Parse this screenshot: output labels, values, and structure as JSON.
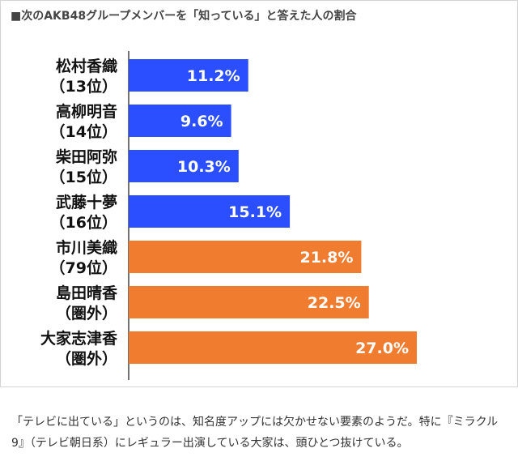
{
  "chart_data": {
    "type": "bar",
    "orientation": "horizontal",
    "title": "■次のAKB48グループメンバーを「知っている」と答えた人の割合",
    "categories": [
      {
        "name": "松村香織",
        "sub": "（13位）"
      },
      {
        "name": "高柳明音",
        "sub": "（14位）"
      },
      {
        "name": "柴田阿弥",
        "sub": "（15位）"
      },
      {
        "name": "武藤十夢",
        "sub": "（16位）"
      },
      {
        "name": "市川美織",
        "sub": "（79位）"
      },
      {
        "name": "島田晴香",
        "sub": "（圏外）"
      },
      {
        "name": "大家志津香",
        "sub": "（圏外）"
      }
    ],
    "values": [
      11.2,
      9.6,
      10.3,
      15.1,
      21.8,
      22.5,
      27.0
    ],
    "value_labels": [
      "11.2%",
      "9.6%",
      "10.3%",
      "15.1%",
      "21.8%",
      "22.5%",
      "27.0%"
    ],
    "unit": "%",
    "groups": [
      "blue",
      "blue",
      "blue",
      "blue",
      "orange",
      "orange",
      "orange"
    ],
    "colors": {
      "blue": "#2b4fff",
      "orange": "#f07c30"
    },
    "xlim": [
      0,
      27.0
    ],
    "grid": false,
    "xlabel": "",
    "ylabel": ""
  },
  "caption": "「テレビに出ている」というのは、知名度アップには欠かせない要素のようだ。特に『ミラクル9』（テレビ朝日系）にレギュラー出演している大家は、頭ひとつ抜けている。"
}
